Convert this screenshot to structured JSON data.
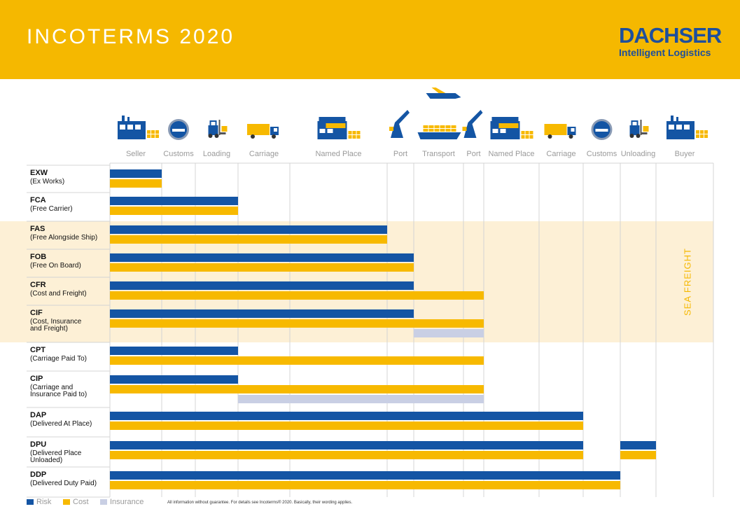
{
  "header": {
    "title": "INCOTERMS 2020",
    "brand_name": "DACHSER",
    "brand_tagline": "Intelligent Logistics",
    "header_color": "#f5b800",
    "brand_color": "#1e4f9c"
  },
  "chart_data": {
    "type": "bar",
    "stages": [
      "Seller",
      "Customs",
      "Loading",
      "Carriage",
      "Named Place",
      "Port",
      "Transport",
      "Port",
      "Named Place",
      "Carriage",
      "Customs",
      "Unloading",
      "Buyer"
    ],
    "stage_icons": [
      "factory-icon",
      "customs-stamp-icon",
      "forklift-icon",
      "truck-icon",
      "cargo-warehouse-icon",
      "port-crane-icon",
      "ship-icon",
      "port-crane-icon",
      "cargo-warehouse-icon",
      "truck-icon",
      "customs-stamp-icon",
      "forklift-icon",
      "warehouse-icon"
    ],
    "terms": [
      {
        "code": "EXW",
        "name": "(Ex Works)",
        "risk_end": 1,
        "cost_end": 1
      },
      {
        "code": "FCA",
        "name": "(Free Carrier)",
        "risk_end": 3,
        "cost_end": 3
      },
      {
        "code": "FAS",
        "name": "(Free Alongside Ship)",
        "risk_end": 5,
        "cost_end": 5
      },
      {
        "code": "FOB",
        "name": "(Free On Board)",
        "risk_end": 6,
        "cost_end": 6
      },
      {
        "code": "CFR",
        "name": "(Cost and Freight)",
        "risk_end": 6,
        "cost_end": 8
      },
      {
        "code": "CIF",
        "name": "(Cost, Insurance\n and Freight)",
        "risk_end": 6,
        "cost_end": 8,
        "insurance": [
          6,
          8
        ]
      },
      {
        "code": "CPT",
        "name": "(Carriage Paid To)",
        "risk_end": 3,
        "cost_end": 8
      },
      {
        "code": "CIP",
        "name": "(Carriage and\n Insurance Paid to)",
        "risk_end": 3,
        "cost_end": 8,
        "insurance": [
          3,
          8
        ]
      },
      {
        "code": "DAP",
        "name": "(Delivered At Place)",
        "risk_end": 10,
        "cost_end": 10
      },
      {
        "code": "DPU",
        "name": "(Delivered Place\nUnloaded)",
        "risk_end": 10,
        "cost_end": 10,
        "risk_extra": [
          11,
          12
        ],
        "cost_extra": [
          11,
          12
        ]
      },
      {
        "code": "DDP",
        "name": "(Delivered Duty Paid)",
        "risk_end": 11,
        "cost_end": 11
      }
    ],
    "sea_freight_label": "SEA FREIGHT",
    "sea_freight_terms": [
      "FAS",
      "FOB",
      "CFR",
      "CIF"
    ],
    "legend": [
      "Risk",
      "Cost",
      "Insurance"
    ],
    "colors": {
      "risk": "#1455a4",
      "cost": "#f7b900",
      "insurance": "#c9cfe4",
      "sea": "#fdf0d6"
    }
  },
  "footer": {
    "disclaimer": "All information without guarantee. For details see Incoterms® 2020. Basically, their wording applies."
  }
}
